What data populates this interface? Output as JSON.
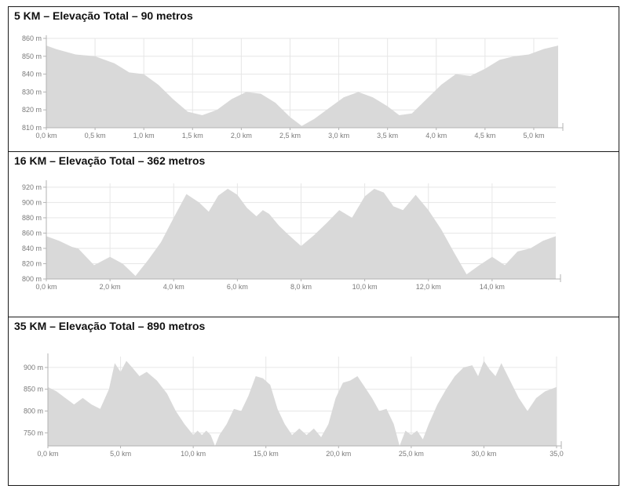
{
  "colors": {
    "area": "#d9d9d9",
    "grid": "#e6e6e6",
    "axis": "#b3b3b3",
    "tick_text": "#7a7a7a"
  },
  "chart_data": [
    {
      "type": "area",
      "title": "5 KM – Elevação Total – 90 metros",
      "grid": true,
      "x_ticks": [
        "0,0 km",
        "0,5 km",
        "1,0 km",
        "1,5 km",
        "2,0 km",
        "2,5 km",
        "3,0 km",
        "3,5 km",
        "4,0 km",
        "4,5 km",
        "5,0 km"
      ],
      "y_ticks": [
        "810 m",
        "820 m",
        "830 m",
        "840 m",
        "850 m",
        "860 m"
      ],
      "xlim": [
        0,
        5.25
      ],
      "ylim": [
        810,
        860
      ],
      "x_unit": "km",
      "y_unit": "m",
      "x": [
        0,
        0.1,
        0.3,
        0.5,
        0.7,
        0.85,
        1.0,
        1.15,
        1.3,
        1.45,
        1.6,
        1.75,
        1.9,
        2.05,
        2.2,
        2.35,
        2.5,
        2.62,
        2.75,
        2.9,
        3.05,
        3.2,
        3.35,
        3.5,
        3.62,
        3.75,
        3.9,
        4.05,
        4.2,
        4.35,
        4.5,
        4.65,
        4.8,
        4.95,
        5.1,
        5.25
      ],
      "y": [
        856,
        854,
        851,
        850,
        846,
        841,
        840,
        834,
        826,
        819,
        817,
        820,
        826,
        830,
        829,
        824,
        816,
        811,
        815,
        821,
        827,
        830,
        827,
        822,
        817,
        818,
        826,
        834,
        840,
        839,
        843,
        848,
        850,
        851,
        854,
        856
      ]
    },
    {
      "type": "area",
      "title": "16 KM – Elevação Total – 362 metros",
      "grid": true,
      "x_ticks": [
        "0,0 km",
        "2,0 km",
        "4,0 km",
        "6,0 km",
        "8,0 km",
        "10,0 km",
        "12,0 km",
        "14,0 km"
      ],
      "y_ticks": [
        "800 m",
        "820 m",
        "840 m",
        "860 m",
        "880 m",
        "900 m",
        "920 m"
      ],
      "xlim": [
        0,
        16
      ],
      "ylim": [
        800,
        925
      ],
      "x_unit": "km",
      "y_unit": "m",
      "x": [
        0,
        0.4,
        0.8,
        1.0,
        1.5,
        2.0,
        2.4,
        2.8,
        3.2,
        3.6,
        4.0,
        4.4,
        4.8,
        5.1,
        5.4,
        5.7,
        6.0,
        6.3,
        6.6,
        6.8,
        7.0,
        7.3,
        7.6,
        8.0,
        8.4,
        8.8,
        9.2,
        9.6,
        10.0,
        10.3,
        10.6,
        10.9,
        11.2,
        11.6,
        12.0,
        12.4,
        12.8,
        13.2,
        13.6,
        14.0,
        14.4,
        14.8,
        15.2,
        15.6,
        16.0
      ],
      "y": [
        856,
        850,
        842,
        840,
        818,
        829,
        820,
        804,
        825,
        848,
        880,
        911,
        900,
        888,
        909,
        918,
        910,
        893,
        882,
        890,
        885,
        870,
        858,
        843,
        857,
        873,
        890,
        880,
        908,
        918,
        913,
        895,
        890,
        910,
        890,
        865,
        835,
        806,
        818,
        829,
        818,
        836,
        840,
        850,
        856
      ]
    },
    {
      "type": "area",
      "title": "35 KM – Elevação Total – 890 metros",
      "grid": true,
      "x_ticks": [
        "0,0 km",
        "5,0 km",
        "10,0 km",
        "15,0 km",
        "20,0 km",
        "25,0 km",
        "30,0 km",
        "35,0"
      ],
      "y_ticks": [
        "750 m",
        "800 m",
        "850 m",
        "900 m"
      ],
      "xlim": [
        0,
        35
      ],
      "ylim": [
        720,
        925
      ],
      "x_unit": "km",
      "y_unit": "m",
      "x": [
        0,
        0.6,
        1.2,
        1.8,
        2.4,
        3.0,
        3.6,
        4.2,
        4.6,
        5.0,
        5.4,
        5.8,
        6.3,
        6.8,
        7.5,
        8.2,
        8.8,
        9.4,
        10.0,
        10.3,
        10.6,
        10.9,
        11.2,
        11.5,
        11.8,
        12.3,
        12.8,
        13.3,
        13.8,
        14.3,
        14.8,
        15.3,
        15.8,
        16.3,
        16.8,
        17.3,
        17.8,
        18.3,
        18.8,
        19.3,
        19.8,
        20.3,
        20.8,
        21.3,
        21.8,
        22.3,
        22.8,
        23.3,
        23.8,
        24.2,
        24.6,
        25.0,
        25.4,
        25.8,
        26.2,
        26.8,
        27.4,
        28.0,
        28.6,
        29.2,
        29.6,
        30.0,
        30.4,
        30.8,
        31.2,
        31.8,
        32.4,
        33.0,
        33.6,
        34.2,
        35.0
      ],
      "y": [
        855,
        845,
        830,
        815,
        830,
        815,
        805,
        850,
        910,
        890,
        915,
        900,
        880,
        890,
        870,
        840,
        800,
        770,
        745,
        755,
        745,
        755,
        745,
        720,
        745,
        770,
        805,
        800,
        835,
        880,
        875,
        860,
        805,
        770,
        745,
        760,
        745,
        760,
        740,
        770,
        830,
        865,
        870,
        880,
        855,
        830,
        800,
        805,
        770,
        720,
        755,
        745,
        755,
        735,
        770,
        815,
        850,
        880,
        900,
        905,
        880,
        915,
        895,
        880,
        910,
        870,
        830,
        800,
        830,
        845,
        855
      ]
    }
  ]
}
